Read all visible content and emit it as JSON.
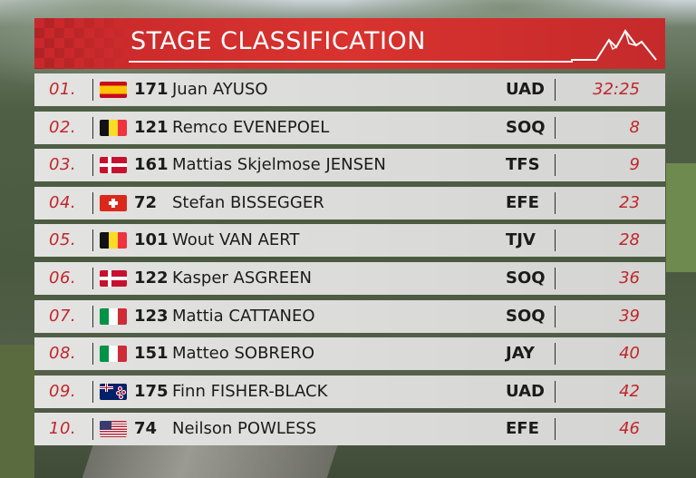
{
  "header": {
    "title": "STAGE CLASSIFICATION",
    "logo_icon": "mountain-icon"
  },
  "colors": {
    "accent_red": "#d8332f",
    "row_bg": "#dcdcda",
    "text_dark": "#1b1b1b",
    "text_red": "#c0262b"
  },
  "rows": [
    {
      "pos": "01.",
      "flag": "spain-flag-icon",
      "num": "171",
      "name": "Juan AYUSO",
      "team": "UAD",
      "time": "32:25"
    },
    {
      "pos": "02.",
      "flag": "belgium-flag-icon",
      "num": "121",
      "name": "Remco EVENEPOEL",
      "team": "SOQ",
      "time": "8"
    },
    {
      "pos": "03.",
      "flag": "denmark-flag-icon",
      "num": "161",
      "name": "Mattias Skjelmose JENSEN",
      "team": "TFS",
      "time": "9"
    },
    {
      "pos": "04.",
      "flag": "switzerland-flag-icon",
      "num": "72",
      "name": "Stefan BISSEGGER",
      "team": "EFE",
      "time": "23"
    },
    {
      "pos": "05.",
      "flag": "belgium-flag-icon",
      "num": "101",
      "name": "Wout VAN AERT",
      "team": "TJV",
      "time": "28"
    },
    {
      "pos": "06.",
      "flag": "denmark-flag-icon",
      "num": "122",
      "name": "Kasper ASGREEN",
      "team": "SOQ",
      "time": "36"
    },
    {
      "pos": "07.",
      "flag": "italy-flag-icon",
      "num": "123",
      "name": "Mattia CATTANEO",
      "team": "SOQ",
      "time": "39"
    },
    {
      "pos": "08.",
      "flag": "italy-flag-icon",
      "num": "151",
      "name": "Matteo SOBRERO",
      "team": "JAY",
      "time": "40"
    },
    {
      "pos": "09.",
      "flag": "new-zealand-flag-icon",
      "num": "175",
      "name": "Finn FISHER-BLACK",
      "team": "UAD",
      "time": "42"
    },
    {
      "pos": "10.",
      "flag": "usa-flag-icon",
      "num": "74",
      "name": "Neilson POWLESS",
      "team": "EFE",
      "time": "46"
    }
  ]
}
